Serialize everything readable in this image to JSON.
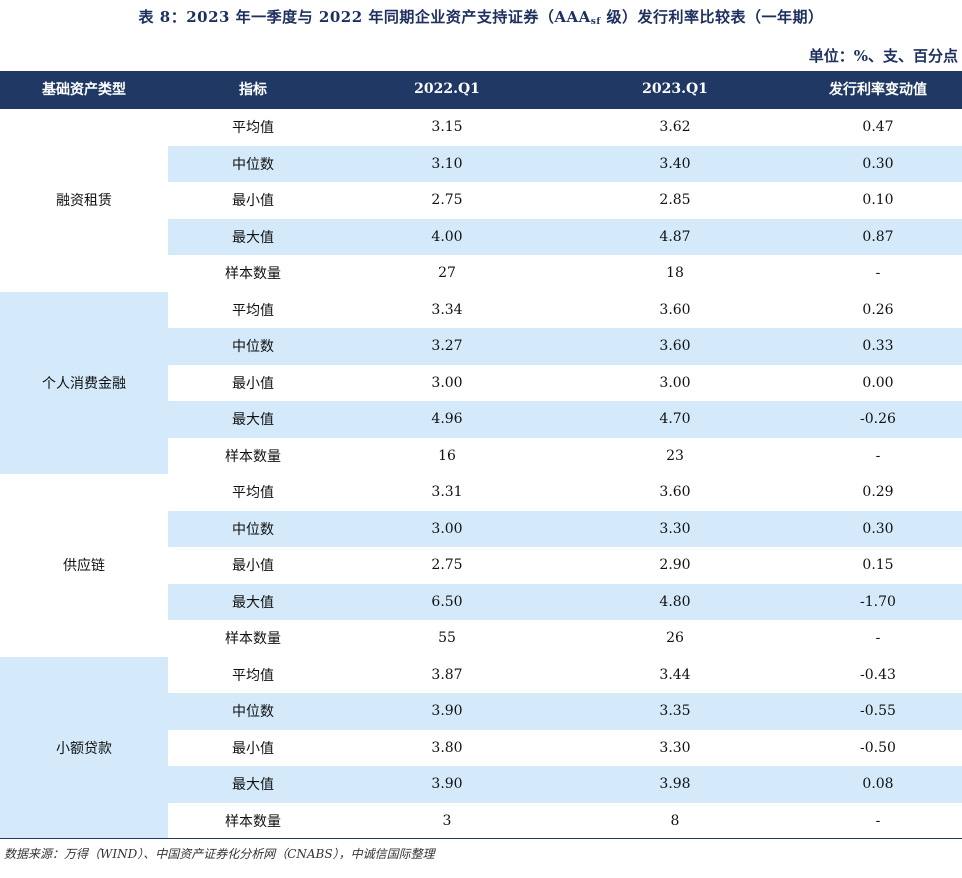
{
  "title": {
    "prefix": "表 8：2023 年一季度与 2022 年同期企业资产支持证券（AAA",
    "sub": "sf",
    "suffix": " 级）发行利率比较表（一年期）"
  },
  "unit": "单位：%、支、百分点",
  "headers": [
    "基础资产类型",
    "指标",
    "2022.Q1",
    "2023.Q1",
    "发行利率变动值"
  ],
  "groups": [
    {
      "name": "融资租赁",
      "rows": [
        {
          "metric": "平均值",
          "q2022": "3.15",
          "q2023": "3.62",
          "change": "0.47"
        },
        {
          "metric": "中位数",
          "q2022": "3.10",
          "q2023": "3.40",
          "change": "0.30"
        },
        {
          "metric": "最小值",
          "q2022": "2.75",
          "q2023": "2.85",
          "change": "0.10"
        },
        {
          "metric": "最大值",
          "q2022": "4.00",
          "q2023": "4.87",
          "change": "0.87"
        },
        {
          "metric": "样本数量",
          "q2022": "27",
          "q2023": "18",
          "change": "-"
        }
      ]
    },
    {
      "name": "个人消费金融",
      "rows": [
        {
          "metric": "平均值",
          "q2022": "3.34",
          "q2023": "3.60",
          "change": "0.26"
        },
        {
          "metric": "中位数",
          "q2022": "3.27",
          "q2023": "3.60",
          "change": "0.33"
        },
        {
          "metric": "最小值",
          "q2022": "3.00",
          "q2023": "3.00",
          "change": "0.00"
        },
        {
          "metric": "最大值",
          "q2022": "4.96",
          "q2023": "4.70",
          "change": "-0.26"
        },
        {
          "metric": "样本数量",
          "q2022": "16",
          "q2023": "23",
          "change": "-"
        }
      ]
    },
    {
      "name": "供应链",
      "rows": [
        {
          "metric": "平均值",
          "q2022": "3.31",
          "q2023": "3.60",
          "change": "0.29"
        },
        {
          "metric": "中位数",
          "q2022": "3.00",
          "q2023": "3.30",
          "change": "0.30"
        },
        {
          "metric": "最小值",
          "q2022": "2.75",
          "q2023": "2.90",
          "change": "0.15"
        },
        {
          "metric": "最大值",
          "q2022": "6.50",
          "q2023": "4.80",
          "change": "-1.70"
        },
        {
          "metric": "样本数量",
          "q2022": "55",
          "q2023": "26",
          "change": "-"
        }
      ]
    },
    {
      "name": "小额贷款",
      "rows": [
        {
          "metric": "平均值",
          "q2022": "3.87",
          "q2023": "3.44",
          "change": "-0.43"
        },
        {
          "metric": "中位数",
          "q2022": "3.90",
          "q2023": "3.35",
          "change": "-0.55"
        },
        {
          "metric": "最小值",
          "q2022": "3.80",
          "q2023": "3.30",
          "change": "-0.50"
        },
        {
          "metric": "最大值",
          "q2022": "3.90",
          "q2023": "3.98",
          "change": "0.08"
        },
        {
          "metric": "样本数量",
          "q2022": "3",
          "q2023": "8",
          "change": "-"
        }
      ]
    }
  ],
  "source": "数据来源：万得（WIND）、中国资产证券化分析网（CNABS），中诚信国际整理",
  "colors": {
    "header_bg": "#1f3864",
    "title_text": "#1c2f5e",
    "row_shade": "#d4eafa"
  }
}
